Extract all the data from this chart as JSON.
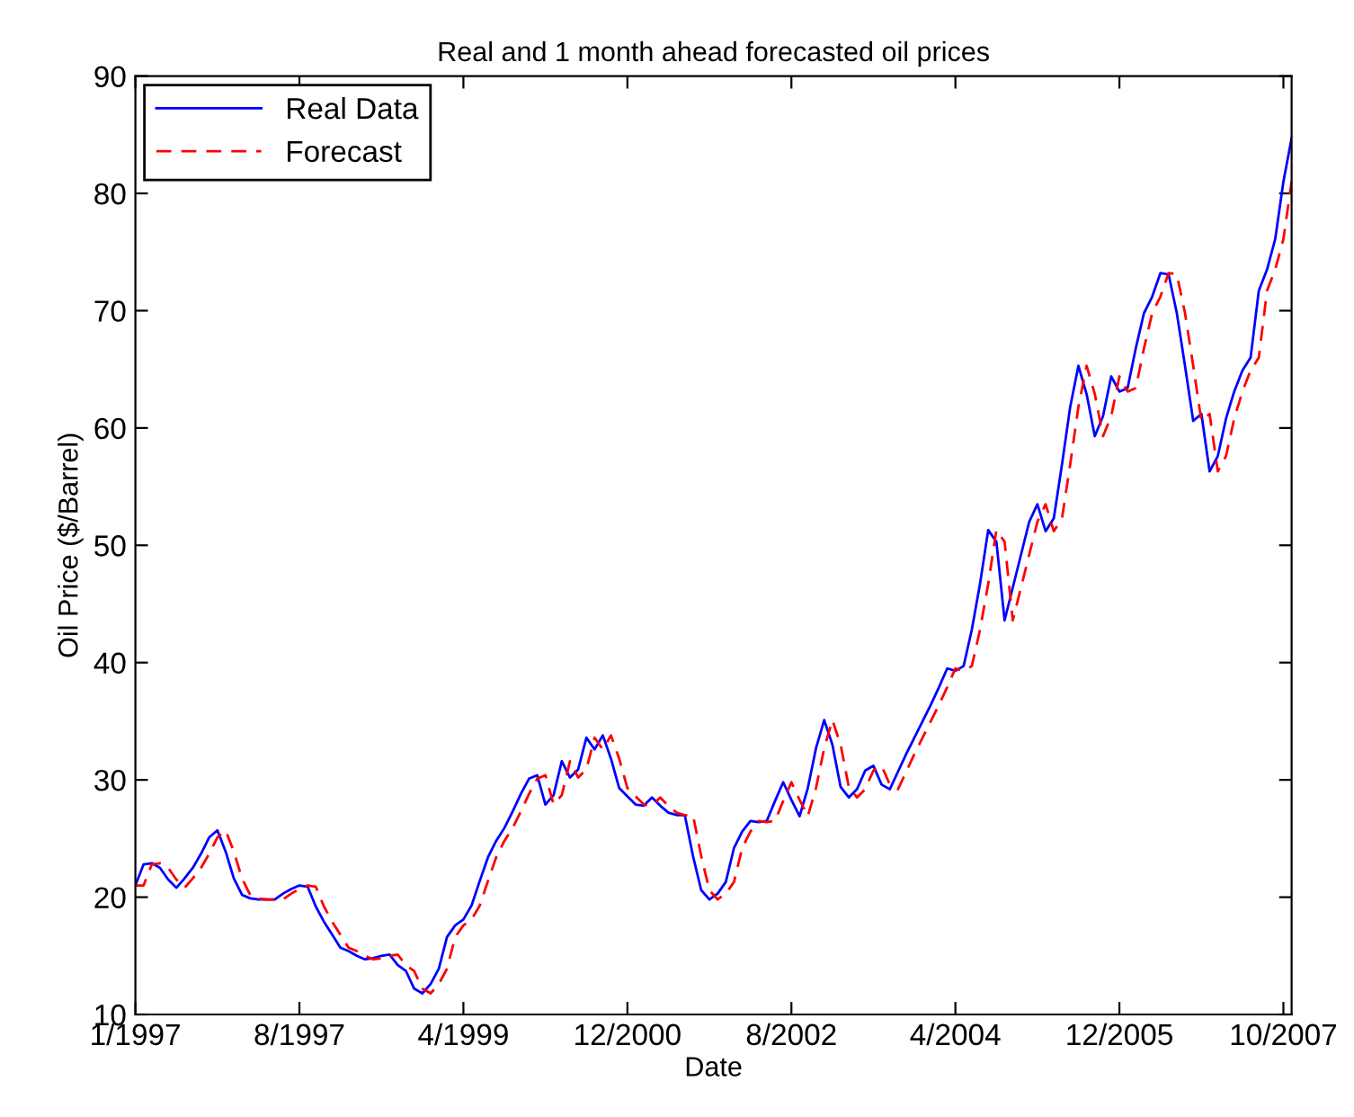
{
  "chart_data": {
    "type": "line",
    "title": "Real and 1 month ahead forecasted oil prices",
    "xlabel": "Date",
    "ylabel": "Oil Price ($/Barrel)",
    "categories": [
      "1/1997",
      null,
      null,
      null,
      null,
      null,
      null,
      null,
      null,
      null,
      null,
      null,
      null,
      null,
      null,
      null,
      null,
      null,
      null,
      null,
      "8/1997",
      null,
      null,
      null,
      null,
      null,
      null,
      null,
      null,
      null,
      null,
      null,
      null,
      null,
      null,
      null,
      null,
      null,
      null,
      null,
      "4/1999",
      null,
      null,
      null,
      null,
      null,
      null,
      null,
      null,
      null,
      null,
      null,
      null,
      null,
      null,
      null,
      null,
      null,
      null,
      null,
      "12/2000",
      null,
      null,
      null,
      null,
      null,
      null,
      null,
      null,
      null,
      null,
      null,
      null,
      null,
      null,
      null,
      null,
      null,
      null,
      null,
      "8/2002",
      null,
      null,
      null,
      null,
      null,
      null,
      null,
      null,
      null,
      null,
      null,
      null,
      null,
      null,
      null,
      null,
      null,
      null,
      null,
      "4/2004",
      null,
      null,
      null,
      null,
      null,
      null,
      null,
      null,
      null,
      null,
      null,
      null,
      null,
      null,
      null,
      null,
      null,
      null,
      null,
      "12/2005",
      null,
      null,
      null,
      null,
      null,
      null,
      null,
      null,
      null,
      null,
      null,
      null,
      null,
      null,
      null,
      null,
      null,
      null,
      null,
      "10/2007",
      null
    ],
    "ylim": [
      10,
      90
    ],
    "yticks": [
      10,
      20,
      30,
      40,
      50,
      60,
      70,
      80,
      90
    ],
    "grid": false,
    "legend": "top left",
    "marker": "none",
    "series": [
      {
        "name": "Real Data",
        "color": "#0000ff",
        "line_style": "solid",
        "values": [
          21.0,
          22.8,
          22.9,
          22.5,
          21.5,
          20.8,
          21.6,
          22.5,
          23.7,
          25.1,
          25.7,
          23.9,
          21.6,
          20.2,
          19.9,
          19.8,
          19.8,
          19.8,
          20.3,
          20.7,
          21.0,
          20.9,
          19.2,
          17.9,
          16.8,
          15.7,
          15.4,
          15.0,
          14.7,
          14.8,
          15.0,
          15.1,
          14.2,
          13.7,
          12.2,
          11.8,
          12.6,
          13.9,
          16.6,
          17.6,
          18.1,
          19.3,
          21.4,
          23.4,
          24.8,
          25.9,
          27.3,
          28.8,
          30.1,
          30.4,
          27.9,
          28.7,
          31.6,
          30.2,
          30.9,
          33.6,
          32.6,
          33.8,
          31.8,
          29.3,
          28.6,
          27.9,
          27.8,
          28.5,
          27.8,
          27.2,
          27.0,
          27.0,
          23.5,
          20.6,
          19.8,
          20.3,
          21.3,
          24.2,
          25.6,
          26.5,
          26.4,
          26.5,
          28.2,
          29.8,
          28.3,
          26.9,
          29.3,
          32.7,
          35.1,
          33.0,
          29.4,
          28.5,
          29.2,
          30.8,
          31.2,
          29.6,
          29.2,
          30.7,
          32.2,
          33.6,
          35.0,
          36.4,
          37.9,
          39.5,
          39.3,
          39.7,
          42.8,
          46.7,
          51.3,
          50.3,
          43.6,
          46.4,
          49.2,
          52.0,
          53.5,
          51.2,
          52.3,
          56.9,
          61.8,
          65.3,
          62.9,
          59.3,
          61.0,
          64.4,
          63.1,
          63.4,
          66.8,
          69.8,
          71.2,
          73.2,
          73.1,
          69.8,
          65.3,
          60.6,
          61.2,
          56.3,
          57.6,
          60.8,
          63.1,
          64.9,
          66.0,
          71.7,
          73.5,
          76.1,
          81.0,
          84.7
        ]
      },
      {
        "name": "Forecast",
        "color": "#ff0000",
        "line_style": "dashed",
        "values": [
          21.0,
          21.0,
          22.8,
          22.9,
          22.5,
          21.5,
          20.8,
          21.6,
          22.5,
          23.7,
          25.1,
          25.7,
          23.9,
          21.6,
          20.2,
          19.9,
          19.8,
          19.8,
          19.8,
          20.3,
          20.7,
          21.0,
          20.9,
          19.2,
          17.9,
          16.8,
          15.7,
          15.4,
          15.0,
          14.7,
          14.8,
          15.0,
          15.1,
          14.2,
          13.7,
          12.2,
          11.8,
          12.6,
          13.9,
          16.6,
          17.6,
          18.1,
          19.3,
          21.4,
          23.4,
          24.8,
          25.9,
          27.3,
          28.8,
          30.1,
          30.4,
          27.9,
          28.7,
          31.6,
          30.2,
          30.9,
          33.6,
          32.6,
          33.8,
          31.8,
          29.3,
          28.6,
          27.9,
          27.8,
          28.5,
          27.8,
          27.2,
          27.0,
          27.0,
          23.5,
          20.6,
          19.8,
          20.3,
          21.3,
          24.2,
          25.6,
          26.5,
          26.4,
          26.5,
          28.2,
          29.8,
          28.3,
          26.9,
          29.3,
          32.7,
          35.1,
          33.0,
          29.4,
          28.5,
          29.2,
          30.8,
          31.2,
          29.6,
          29.2,
          30.7,
          32.2,
          33.6,
          35.0,
          36.4,
          37.9,
          39.5,
          39.3,
          39.7,
          42.8,
          46.7,
          51.3,
          50.3,
          43.6,
          46.4,
          49.2,
          52.0,
          53.5,
          51.2,
          52.3,
          56.9,
          61.8,
          65.3,
          62.9,
          59.3,
          61.0,
          64.4,
          63.1,
          63.4,
          66.8,
          69.8,
          71.2,
          73.2,
          73.1,
          69.8,
          65.3,
          60.6,
          61.2,
          56.3,
          57.6,
          60.8,
          63.1,
          64.9,
          66.0,
          71.7,
          73.5,
          76.1,
          81.0
        ]
      }
    ]
  }
}
